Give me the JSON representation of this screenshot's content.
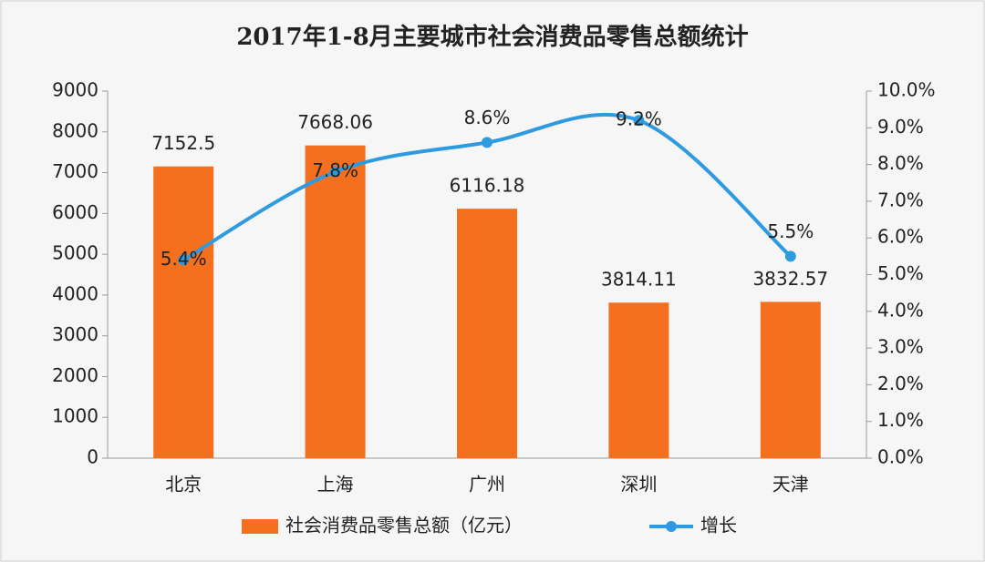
{
  "chart_data": {
    "type": "bar",
    "title": "2017年1-8月主要城市社会消费品零售总额统计",
    "categories": [
      "北京",
      "上海",
      "广州",
      "深圳",
      "天津"
    ],
    "series": [
      {
        "name": "社会消费品零售总额（亿元）",
        "type": "bar",
        "color": "#f5701e",
        "values": [
          7152.5,
          7668.06,
          6116.18,
          3814.11,
          3832.57
        ]
      },
      {
        "name": "增长",
        "type": "line",
        "axis": "y2",
        "color": "#2e9be0",
        "values": [
          5.4,
          7.8,
          8.6,
          9.2,
          5.5
        ],
        "value_labels": [
          "5.4%",
          "7.8%",
          "8.6%",
          "9.2%",
          "5.5%"
        ]
      }
    ],
    "ylim": [
      0,
      9000
    ],
    "yticks": [
      0,
      1000,
      2000,
      3000,
      4000,
      5000,
      6000,
      7000,
      8000,
      9000
    ],
    "y2lim": [
      0,
      10
    ],
    "y2ticks": [
      {
        "value": 0,
        "label": "0.0%"
      },
      {
        "value": 1,
        "label": "1.0%"
      },
      {
        "value": 2,
        "label": "2.0%"
      },
      {
        "value": 3,
        "label": "3.0%"
      },
      {
        "value": 4,
        "label": "4.0%"
      },
      {
        "value": 5,
        "label": "5.0%"
      },
      {
        "value": 6,
        "label": "6.0%"
      },
      {
        "value": 7,
        "label": "7.0%"
      },
      {
        "value": 8,
        "label": "8.0%"
      },
      {
        "value": 9,
        "label": "9.0%"
      },
      {
        "value": 10,
        "label": "10.0%"
      }
    ],
    "grid": false,
    "legend": "bottom"
  }
}
